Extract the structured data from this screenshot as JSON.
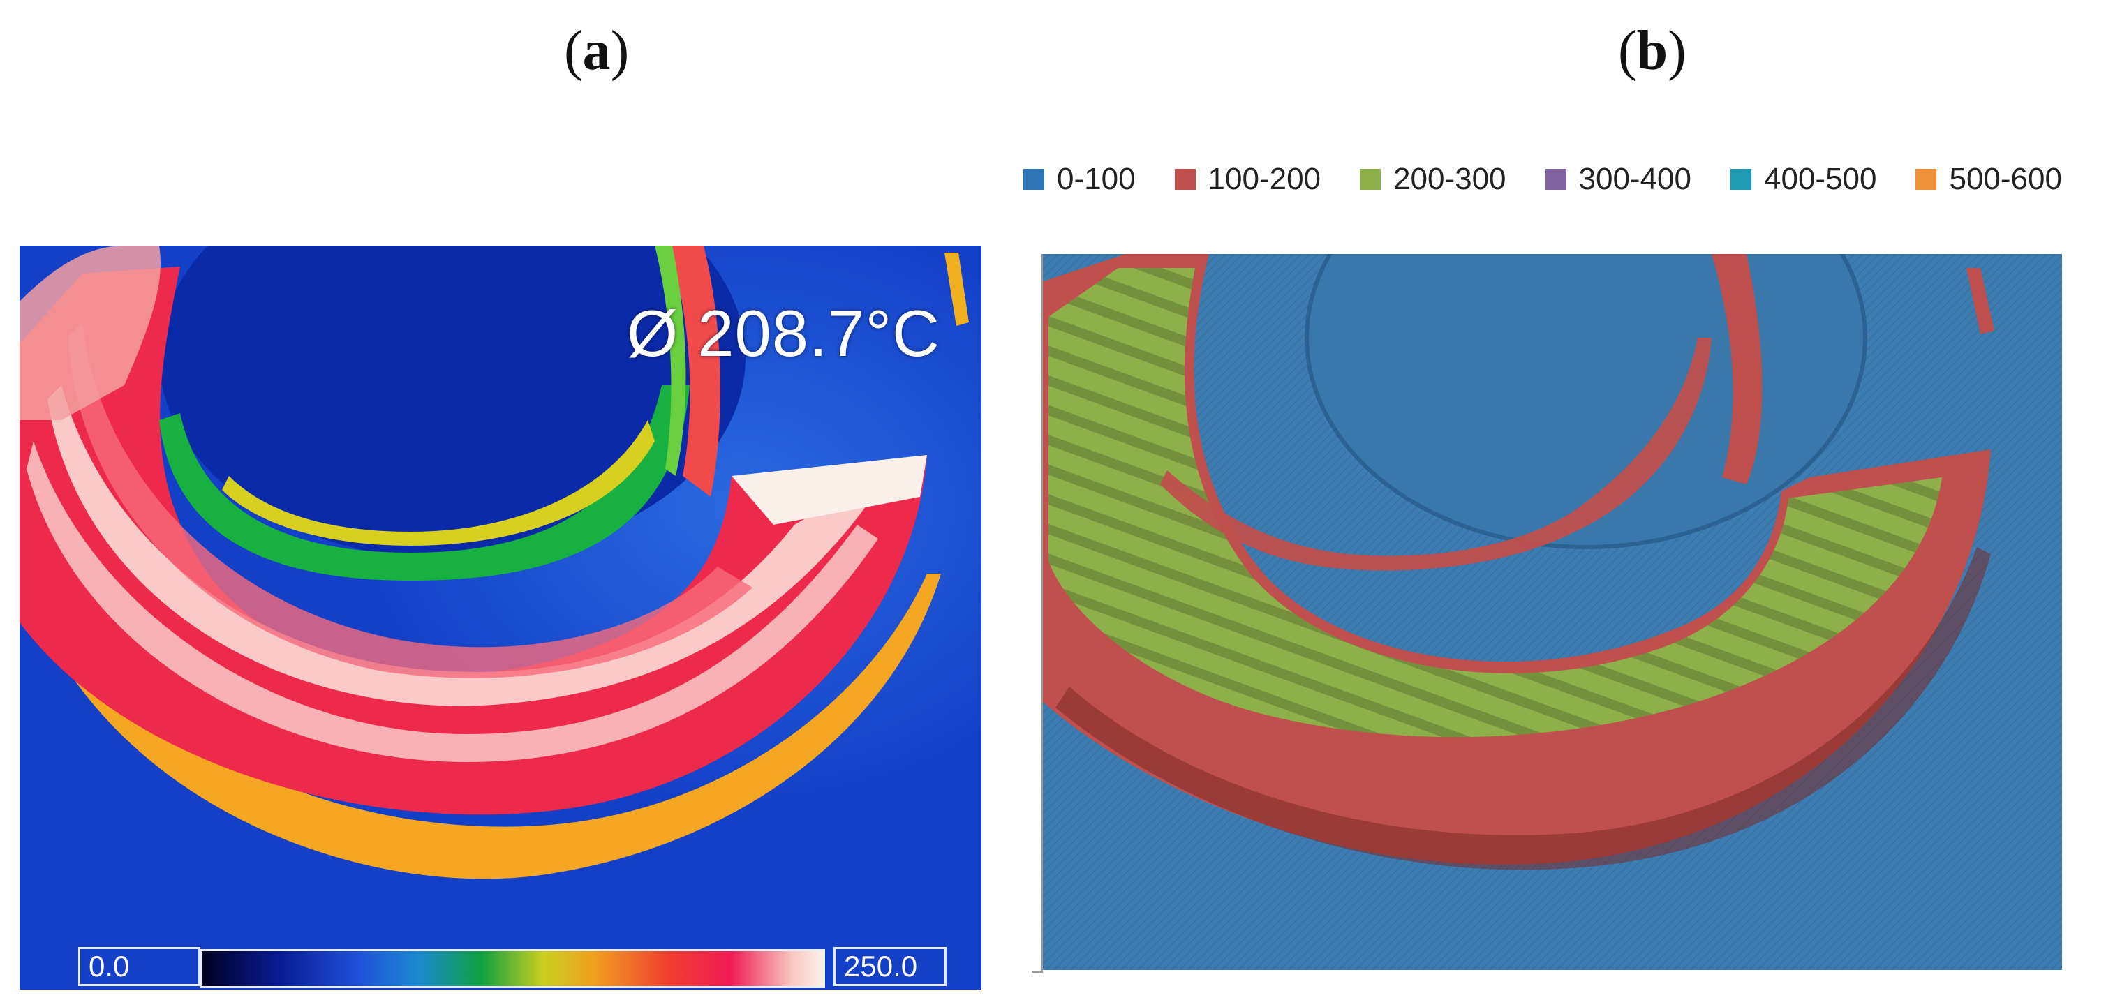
{
  "panels": {
    "a": {
      "label": "(a)",
      "letter": "a"
    },
    "b": {
      "label": "(b)",
      "letter": "b"
    }
  },
  "thermal": {
    "average_temperature": "Ø 208.7°C",
    "scale_min": "0.0",
    "scale_max": "250.0"
  },
  "legend": {
    "items": [
      {
        "label": "0-100",
        "color": "#2e75b6"
      },
      {
        "label": "100-200",
        "color": "#c0504d"
      },
      {
        "label": "200-300",
        "color": "#8db04b"
      },
      {
        "label": "300-400",
        "color": "#8064a2"
      },
      {
        "label": "400-500",
        "color": "#1f9bb5"
      },
      {
        "label": "500-600",
        "color": "#f0913a"
      }
    ]
  }
}
